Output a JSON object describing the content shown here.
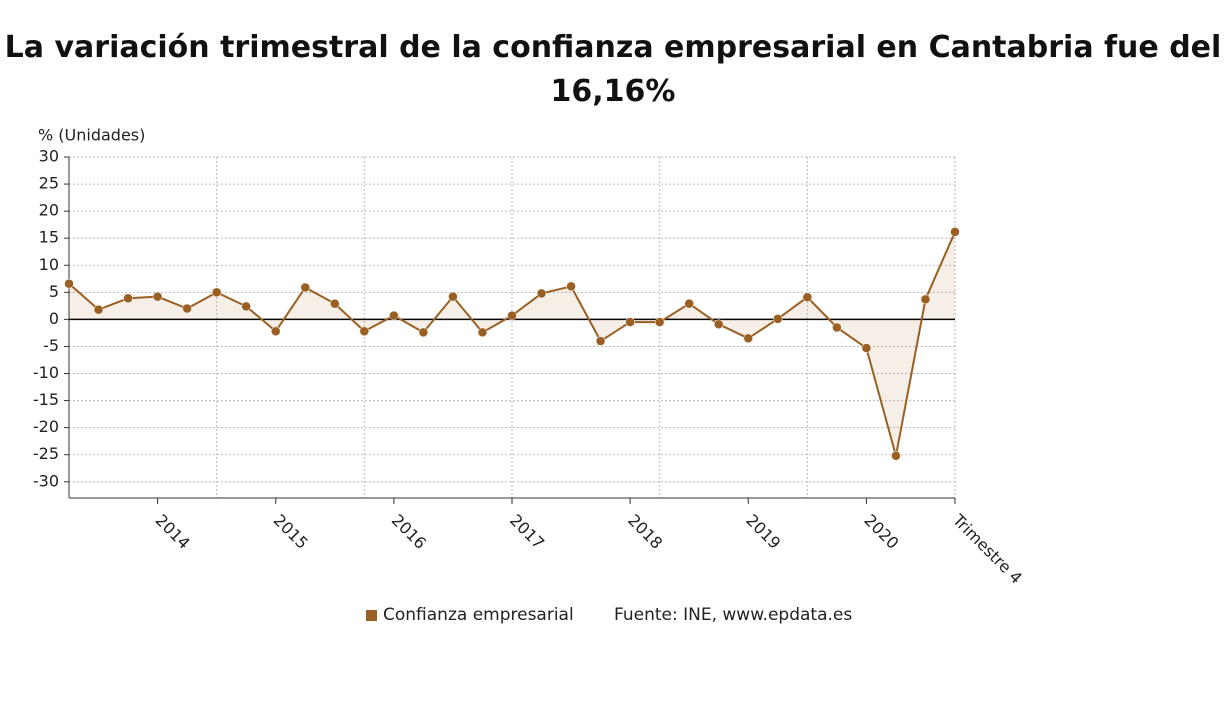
{
  "chart_data": {
    "type": "line",
    "title": "La variación trimestral de la confianza empresarial en Cantabria fue del 16,16%",
    "y_label": "% (Unidades)",
    "source": "Fuente: INE, www.epdata.es",
    "categories": [
      null,
      null,
      null,
      "2014",
      null,
      null,
      null,
      "2015",
      null,
      null,
      null,
      "2016",
      null,
      null,
      null,
      "2017",
      null,
      null,
      null,
      "2018",
      null,
      null,
      null,
      "2019",
      null,
      null,
      null,
      "2020",
      null,
      null,
      "Trimestre 4"
    ],
    "series": [
      {
        "name": "Confianza empresarial",
        "color": "#9a5f22",
        "values": [
          6.6,
          1.8,
          3.9,
          4.2,
          2.0,
          5.0,
          2.4,
          -2.2,
          5.9,
          2.9,
          -2.2,
          0.7,
          -2.4,
          4.2,
          -2.4,
          0.7,
          4.8,
          6.1,
          -4.0,
          -0.5,
          -0.5,
          2.9,
          -0.9,
          -3.5,
          0.1,
          4.1,
          -1.5,
          -5.3,
          -25.2,
          3.7,
          16.16
        ]
      }
    ],
    "ylim": [
      -33,
      30
    ],
    "yticks": [
      -30,
      -25,
      -20,
      -15,
      -10,
      -5,
      0,
      5,
      10,
      15,
      20,
      25,
      30
    ],
    "grid": true,
    "area": true,
    "legend": "bottom"
  }
}
